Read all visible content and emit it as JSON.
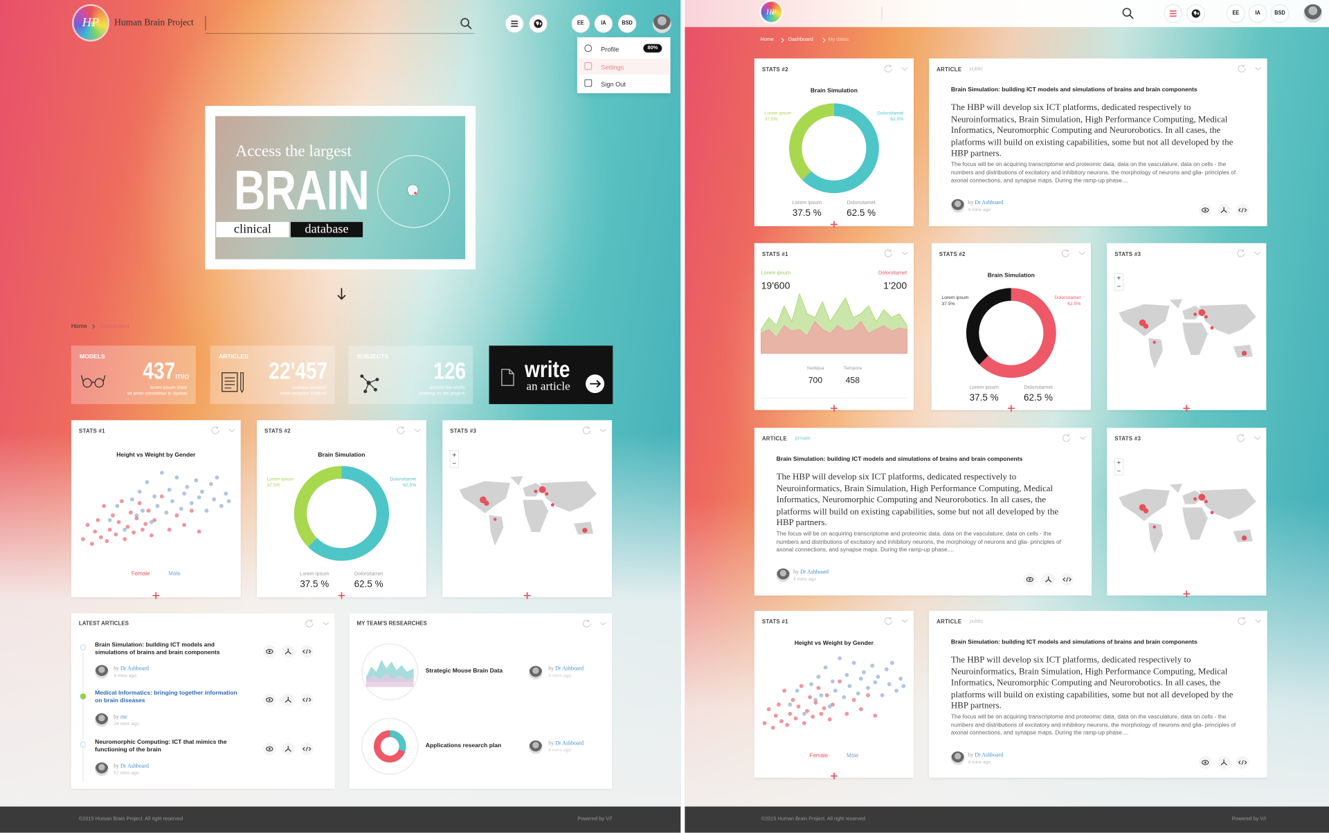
{
  "labels": {
    "by": "by"
  },
  "left": {
    "header": {
      "logo": "HP",
      "brand": "Human Brain Project",
      "buttons": [
        "EE",
        "IA",
        "BSD"
      ]
    },
    "user_menu": [
      {
        "label": "Profile",
        "badge": "80%"
      },
      {
        "label": "Settings"
      },
      {
        "label": "Sign Out"
      }
    ],
    "hero": {
      "intro": "Access the largest",
      "headline": "BRAIN",
      "tag1": "clinical",
      "tag2": "database"
    },
    "breadcrumb": [
      "Home",
      "Dashboard"
    ],
    "tiles": [
      {
        "label": "MODELS",
        "value": "437",
        "unit": "mio",
        "caption": [
          "lorem ipsum dolor",
          "sit amet consetetur in sipidas"
        ]
      },
      {
        "label": "ARTICLES",
        "value": "22'457",
        "caption": [
          "sediqua nonieun",
          "modi tempora incidunt"
        ]
      },
      {
        "label": "SUBJECTS",
        "value": "126",
        "caption": [
          "around the world",
          "working on the project"
        ]
      }
    ],
    "write_tile": {
      "big": "write",
      "small": "an article"
    },
    "cards": [
      {
        "header": "STATS #1"
      },
      {
        "header": "STATS #2"
      },
      {
        "header": "STATS #3"
      }
    ],
    "latest": {
      "title": "LATEST ARTICLES",
      "items": [
        {
          "title": "Brain Simulation: building ICT models and simulations of brains and brain components",
          "author": "Dr Ashboard",
          "time": "4 mins ago"
        },
        {
          "title": "Medical Informatics: bringing together information on brain diseases",
          "author": "me",
          "time": "24 mins ago"
        },
        {
          "title": "Neuromorphic Computing: ICT that mimics the functioning of the brain",
          "author": "Dr Ashboard",
          "time": "57 mins ago"
        }
      ]
    },
    "team": {
      "title": "MY TEAM'S RESEARCHES",
      "items": [
        {
          "title": "Strategic Mouse Brain Data",
          "author": "Dr Ashboard",
          "time": "4 mins ago"
        },
        {
          "title": "Applications research plan",
          "author": "Dr Ashboard",
          "time": "4 mins ago"
        }
      ]
    },
    "footer": {
      "copyright": "©2015 Human Brain Project. All right reserved",
      "powered": "Powered by V//"
    }
  },
  "right": {
    "header": {
      "logo": "HP",
      "buttons": [
        "EE",
        "IA",
        "BSD"
      ]
    },
    "breadcrumb": [
      "Home",
      "Dashboard",
      "My datas"
    ],
    "cards": [
      {
        "header": "STATS #2"
      },
      {
        "header": "ARTICLE",
        "visibility": "public",
        "title": "Brain Simulation: building ICT models and simulations of brains and brain components",
        "lead": "The HBP will develop six ICT platforms, dedicated respectively to Neuroinformatics, Brain Simulation, High Performance Computing, Medical Informatics, Neuromorphic Computing and Neurorobotics. In all cases, the platforms will build on existing capabilities, some but not all developed by the HBP partners.",
        "body": "The focus will be on acquiring transcriptome and proteomic data, data on the vasculature, data on cells - the numbers and distributions of excitatory and inhibitory neurons, the morphology of neurons and glia- principles of axonal connections, and synapse maps. During the ramp-up phase....",
        "author": "Dr Ashboard",
        "time": "4 mins ago"
      },
      {
        "header": "STATS #1"
      },
      {
        "header": "STATS #2"
      },
      {
        "header": "STATS #3"
      },
      {
        "header": "ARTICLE",
        "visibility": "private",
        "title": "Brain Simulation: building ICT models and simulations of brains and brain components",
        "lead": "The HBP will develop six ICT platforms, dedicated respectively to Neuroinformatics, Brain Simulation, High Performance Computing, Medical Informatics, Neuromorphic Computing and Neurorobotics. In all cases, the platforms will build on existing capabilities, some but not all developed by the HBP partners.",
        "body": "The focus will be on acquiring transcriptome and proteomic data, data on the vasculature, data on cells - the numbers and distributions of excitatory and inhibitory neurons, the morphology of neurons and glia- principles of axonal connections, and synapse maps. During the ramp-up phase....",
        "author": "Dr Ashboard",
        "time": "4 mins ago"
      },
      {
        "header": "STATS #3"
      },
      {
        "header": "STATS #1"
      },
      {
        "header": "ARTICLE",
        "visibility": "public",
        "title": "Brain Simulation: building ICT models and simulations of brains and brain components",
        "lead": "The HBP will develop six ICT platforms, dedicated respectively to Neuroinformatics, Brain Simulation, High Performance Computing, Medical Informatics, Neuromorphic Computing and Neurorobotics. In all cases, the platforms will build on existing capabilities, some but not all developed by the HBP partners.",
        "body": "The focus will be on acquiring transcriptome and proteomic data, data on the vasculature, data on cells - the numbers and distributions of excitatory and inhibitory neurons, the morphology of neurons and glia- principles of axonal connections, and synapse maps. During the ramp-up phase....",
        "author": "Dr Ashboard",
        "time": "4 mins ago"
      }
    ],
    "footer": {
      "copyright": "©2015 Human Brain Project. All right reserved",
      "powered": "Powered by V//"
    }
  },
  "chart_data": [
    {
      "type": "scatter",
      "title": "Height vs Weight by Gender",
      "series": [
        {
          "name": "Female",
          "color": "#e8505b",
          "x": [
            2,
            5,
            8,
            10,
            12,
            14,
            16,
            18,
            20,
            22,
            24,
            26,
            28,
            30,
            32,
            34,
            36,
            38,
            40,
            42,
            44,
            46,
            48,
            50,
            55,
            60,
            65,
            70,
            75,
            80
          ],
          "values": [
            20,
            35,
            15,
            28,
            40,
            22,
            55,
            18,
            30,
            45,
            25,
            38,
            60,
            20,
            33,
            48,
            27,
            42,
            58,
            30,
            36,
            50,
            24,
            40,
            65,
            30,
            45,
            35,
            50,
            28
          ]
        },
        {
          "name": "Male",
          "color": "#7d9fcf",
          "x": [
            20,
            25,
            30,
            35,
            38,
            40,
            42,
            45,
            48,
            50,
            52,
            55,
            58,
            60,
            62,
            65,
            68,
            70,
            72,
            75,
            78,
            80,
            82,
            85,
            88,
            90,
            92,
            95,
            98,
            100
          ],
          "values": [
            40,
            55,
            30,
            62,
            45,
            70,
            50,
            80,
            38,
            65,
            55,
            90,
            48,
            72,
            60,
            85,
            52,
            68,
            75,
            58,
            82,
            64,
            70,
            50,
            78,
            62,
            85,
            55,
            68,
            60
          ]
        }
      ]
    },
    {
      "type": "donut",
      "title": "Brain Simulation",
      "categories": [
        "Lorem ipsum",
        "Dolorsitamet"
      ],
      "values": [
        37.5,
        62.5
      ],
      "value_labels": [
        "37.5 %",
        "62.5 %"
      ],
      "callout_labels": [
        "37.5%",
        "62.5%"
      ],
      "colors": [
        "#a8d84e",
        "#4ec5c7"
      ]
    },
    {
      "type": "donut",
      "title": "Brain Simulation",
      "categories": [
        "Lorem ipsum",
        "Dolorsitamet"
      ],
      "values": [
        37.5,
        62.5
      ],
      "value_labels": [
        "37.5 %",
        "62.5 %"
      ],
      "callout_labels": [
        "37.5%",
        "62.5%"
      ],
      "colors": [
        "#a8d84e",
        "#4ec5c7"
      ]
    },
    {
      "type": "area",
      "series": [
        {
          "name": "Lorem ipsum",
          "color": "#b5dc86",
          "values": [
            30,
            45,
            35,
            60,
            40,
            75,
            50,
            45,
            65,
            40,
            55,
            70,
            45,
            50,
            60,
            40,
            55,
            45,
            50,
            35
          ]
        },
        {
          "name": "Dolorsitamet",
          "color": "#f2a3a3",
          "values": [
            25,
            30,
            20,
            35,
            28,
            30,
            22,
            40,
            30,
            25,
            35,
            28,
            30,
            40,
            25,
            30,
            35,
            28,
            32,
            30
          ]
        }
      ],
      "totals": [
        "19'600",
        "1'200"
      ],
      "details": [
        {
          "label": "Sediqua",
          "value": "700"
        },
        {
          "label": "Tempora",
          "value": "458"
        }
      ]
    },
    {
      "type": "donut",
      "title": "Brain Simulation",
      "categories": [
        "Lorem ipsum",
        "Dolorsitamet"
      ],
      "values": [
        37.5,
        62.5
      ],
      "value_labels": [
        "37.5 %",
        "62.5 %"
      ],
      "callout_labels": [
        "37.5%",
        "62.5%"
      ],
      "colors": [
        "#111111",
        "#ee5867"
      ]
    },
    {
      "type": "scatter",
      "title": "Height vs Weight by Gender",
      "series": [
        {
          "name": "Female",
          "color": "#e8505b",
          "x": [
            2,
            5,
            8,
            10,
            12,
            14,
            16,
            18,
            20,
            22,
            24,
            26,
            28,
            30,
            32,
            34,
            36,
            38,
            40,
            42,
            44,
            46,
            48,
            50,
            55,
            60,
            65,
            70,
            75,
            80
          ],
          "values": [
            20,
            35,
            15,
            28,
            40,
            22,
            55,
            18,
            30,
            45,
            25,
            38,
            60,
            20,
            33,
            48,
            27,
            42,
            58,
            30,
            36,
            50,
            24,
            40,
            65,
            30,
            45,
            35,
            50,
            28
          ]
        },
        {
          "name": "Male",
          "color": "#7d9fcf",
          "x": [
            20,
            25,
            30,
            35,
            38,
            40,
            42,
            45,
            48,
            50,
            52,
            55,
            58,
            60,
            62,
            65,
            68,
            70,
            72,
            75,
            78,
            80,
            82,
            85,
            88,
            90,
            92,
            95,
            98,
            100
          ],
          "values": [
            40,
            55,
            30,
            62,
            45,
            70,
            50,
            80,
            38,
            65,
            55,
            90,
            48,
            72,
            60,
            85,
            52,
            68,
            75,
            58,
            82,
            64,
            70,
            50,
            78,
            62,
            85,
            55,
            68,
            60
          ]
        }
      ]
    }
  ]
}
